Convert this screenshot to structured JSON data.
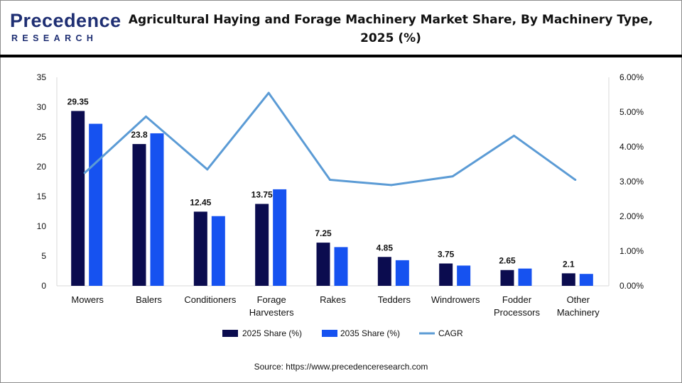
{
  "header": {
    "logo_name": "Precedence",
    "logo_sub": "RESEARCH",
    "title": "Agricultural Haying and Forage Machinery Market Share, By Machinery Type, 2025 (%)"
  },
  "source": {
    "label": "Source:",
    "url": "https://www.precedenceresearch.com"
  },
  "colors": {
    "series_2025": "#0b0c4f",
    "series_2035": "#1652f0",
    "cagr": "#5b9bd5",
    "axis": "#d9d9d9",
    "logo": "#1f2f73"
  },
  "chart_data": {
    "type": "bar",
    "categories": [
      [
        "Mowers"
      ],
      [
        "Balers"
      ],
      [
        "Conditioners"
      ],
      [
        "Forage",
        "Harvesters"
      ],
      [
        "Rakes"
      ],
      [
        "Tedders"
      ],
      [
        "Windrowers"
      ],
      [
        "Fodder",
        "Processors"
      ],
      [
        "Other",
        "Machinery"
      ]
    ],
    "series": [
      {
        "name": "2025 Share (%)",
        "axis": "left",
        "kind": "bar",
        "values": [
          29.35,
          23.8,
          12.45,
          13.75,
          7.25,
          4.85,
          3.75,
          2.65,
          2.1
        ],
        "labels": [
          "29.35",
          "23.8",
          "12.45",
          "13.75",
          "7.25",
          "4.85",
          "3.75",
          "2.65",
          "2.1"
        ]
      },
      {
        "name": "2035 Share (%)",
        "axis": "left",
        "kind": "bar",
        "values": [
          27.2,
          25.6,
          11.7,
          16.2,
          6.5,
          4.3,
          3.4,
          2.9,
          2.0
        ]
      },
      {
        "name": "CAGR",
        "axis": "right",
        "kind": "line",
        "values": [
          3.25,
          4.87,
          3.35,
          5.55,
          3.05,
          2.9,
          3.15,
          4.32,
          3.05
        ]
      }
    ],
    "y_left": {
      "min": 0,
      "max": 35,
      "ticks": [
        "0",
        "5",
        "10",
        "15",
        "20",
        "25",
        "30",
        "35"
      ]
    },
    "y_right": {
      "min": 0,
      "max": 6,
      "ticks": [
        "0.00%",
        "1.00%",
        "2.00%",
        "3.00%",
        "4.00%",
        "5.00%",
        "6.00%"
      ]
    },
    "grid": false,
    "legend": "bottom"
  }
}
